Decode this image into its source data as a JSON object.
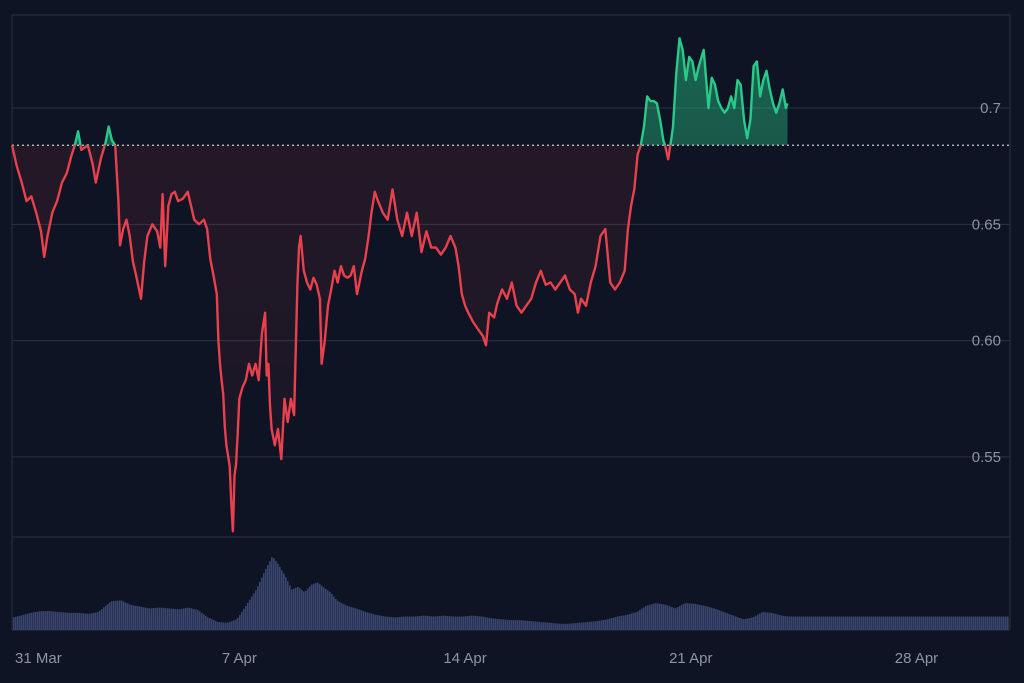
{
  "chart_data": {
    "type": "line",
    "title": "",
    "xlabel": "",
    "ylabel": "",
    "baseline": 0.684,
    "ylim": [
      0.516,
      0.74
    ],
    "y_ticks": [
      "0.55",
      "0.60",
      "0.65",
      "0.7"
    ],
    "x_ticks": [
      "31 Mar",
      "7 Apr",
      "14 Apr",
      "21 Apr",
      "28 Apr"
    ],
    "x_range_days": [
      30.95,
      61.9
    ],
    "colors": {
      "background": "#0e1423",
      "grid": "#2a3245",
      "above": "#29c98a",
      "below": "#e8414d",
      "volume": "#3a4670",
      "tick_text": "#8b93a7",
      "baseline": "#c9ccd4"
    },
    "series": [
      {
        "values": [
          [
            30.95,
            0.684
          ],
          [
            31.1,
            0.675
          ],
          [
            31.25,
            0.668
          ],
          [
            31.4,
            0.66
          ],
          [
            31.55,
            0.662
          ],
          [
            31.7,
            0.655
          ],
          [
            31.85,
            0.647
          ],
          [
            31.95,
            0.636
          ],
          [
            32.05,
            0.645
          ],
          [
            32.2,
            0.655
          ],
          [
            32.35,
            0.66
          ],
          [
            32.5,
            0.668
          ],
          [
            32.65,
            0.672
          ],
          [
            32.8,
            0.68
          ],
          [
            32.9,
            0.684
          ],
          [
            33.0,
            0.69
          ],
          [
            33.1,
            0.682
          ],
          [
            33.3,
            0.684
          ],
          [
            33.45,
            0.676
          ],
          [
            33.55,
            0.668
          ],
          [
            33.7,
            0.678
          ],
          [
            33.85,
            0.685
          ],
          [
            33.95,
            0.692
          ],
          [
            34.05,
            0.686
          ],
          [
            34.15,
            0.684
          ],
          [
            34.25,
            0.66
          ],
          [
            34.3,
            0.641
          ],
          [
            34.4,
            0.648
          ],
          [
            34.5,
            0.652
          ],
          [
            34.6,
            0.645
          ],
          [
            34.7,
            0.634
          ],
          [
            34.8,
            0.628
          ],
          [
            34.95,
            0.618
          ],
          [
            35.05,
            0.634
          ],
          [
            35.15,
            0.645
          ],
          [
            35.3,
            0.65
          ],
          [
            35.45,
            0.647
          ],
          [
            35.55,
            0.64
          ],
          [
            35.62,
            0.663
          ],
          [
            35.7,
            0.632
          ],
          [
            35.8,
            0.658
          ],
          [
            35.9,
            0.663
          ],
          [
            36.0,
            0.664
          ],
          [
            36.1,
            0.66
          ],
          [
            36.25,
            0.661
          ],
          [
            36.4,
            0.664
          ],
          [
            36.5,
            0.658
          ],
          [
            36.6,
            0.652
          ],
          [
            36.75,
            0.65
          ],
          [
            36.9,
            0.652
          ],
          [
            37.0,
            0.648
          ],
          [
            37.1,
            0.635
          ],
          [
            37.2,
            0.628
          ],
          [
            37.3,
            0.62
          ],
          [
            37.35,
            0.6
          ],
          [
            37.4,
            0.59
          ],
          [
            37.45,
            0.583
          ],
          [
            37.5,
            0.577
          ],
          [
            37.55,
            0.563
          ],
          [
            37.6,
            0.555
          ],
          [
            37.7,
            0.546
          ],
          [
            37.75,
            0.53
          ],
          [
            37.8,
            0.518
          ],
          [
            37.85,
            0.542
          ],
          [
            37.9,
            0.547
          ],
          [
            37.95,
            0.56
          ],
          [
            38.0,
            0.575
          ],
          [
            38.1,
            0.58
          ],
          [
            38.2,
            0.583
          ],
          [
            38.3,
            0.59
          ],
          [
            38.4,
            0.585
          ],
          [
            38.5,
            0.59
          ],
          [
            38.6,
            0.583
          ],
          [
            38.7,
            0.603
          ],
          [
            38.8,
            0.612
          ],
          [
            38.85,
            0.585
          ],
          [
            38.9,
            0.59
          ],
          [
            38.95,
            0.572
          ],
          [
            39.0,
            0.562
          ],
          [
            39.1,
            0.555
          ],
          [
            39.2,
            0.562
          ],
          [
            39.3,
            0.549
          ],
          [
            39.4,
            0.575
          ],
          [
            39.5,
            0.565
          ],
          [
            39.6,
            0.575
          ],
          [
            39.7,
            0.568
          ],
          [
            39.8,
            0.624
          ],
          [
            39.85,
            0.64
          ],
          [
            39.9,
            0.645
          ],
          [
            40.0,
            0.63
          ],
          [
            40.1,
            0.625
          ],
          [
            40.2,
            0.622
          ],
          [
            40.3,
            0.627
          ],
          [
            40.4,
            0.624
          ],
          [
            40.5,
            0.618
          ],
          [
            40.55,
            0.59
          ],
          [
            40.65,
            0.6
          ],
          [
            40.75,
            0.615
          ],
          [
            40.85,
            0.622
          ],
          [
            40.95,
            0.63
          ],
          [
            41.05,
            0.625
          ],
          [
            41.15,
            0.632
          ],
          [
            41.25,
            0.628
          ],
          [
            41.35,
            0.627
          ],
          [
            41.45,
            0.628
          ],
          [
            41.55,
            0.632
          ],
          [
            41.65,
            0.62
          ],
          [
            41.8,
            0.63
          ],
          [
            41.9,
            0.635
          ],
          [
            42.0,
            0.644
          ],
          [
            42.1,
            0.655
          ],
          [
            42.2,
            0.664
          ],
          [
            42.3,
            0.66
          ],
          [
            42.45,
            0.655
          ],
          [
            42.6,
            0.652
          ],
          [
            42.75,
            0.665
          ],
          [
            42.9,
            0.652
          ],
          [
            43.05,
            0.645
          ],
          [
            43.2,
            0.655
          ],
          [
            43.35,
            0.645
          ],
          [
            43.5,
            0.655
          ],
          [
            43.65,
            0.638
          ],
          [
            43.8,
            0.647
          ],
          [
            43.95,
            0.64
          ],
          [
            44.1,
            0.64
          ],
          [
            44.25,
            0.637
          ],
          [
            44.4,
            0.64
          ],
          [
            44.55,
            0.645
          ],
          [
            44.7,
            0.64
          ],
          [
            44.8,
            0.632
          ],
          [
            44.9,
            0.62
          ],
          [
            45.0,
            0.615
          ],
          [
            45.1,
            0.612
          ],
          [
            45.25,
            0.608
          ],
          [
            45.4,
            0.605
          ],
          [
            45.55,
            0.602
          ],
          [
            45.65,
            0.598
          ],
          [
            45.75,
            0.612
          ],
          [
            45.9,
            0.61
          ],
          [
            46.0,
            0.616
          ],
          [
            46.15,
            0.622
          ],
          [
            46.3,
            0.618
          ],
          [
            46.45,
            0.625
          ],
          [
            46.6,
            0.615
          ],
          [
            46.75,
            0.612
          ],
          [
            46.9,
            0.615
          ],
          [
            47.05,
            0.618
          ],
          [
            47.2,
            0.625
          ],
          [
            47.35,
            0.63
          ],
          [
            47.5,
            0.624
          ],
          [
            47.65,
            0.625
          ],
          [
            47.8,
            0.622
          ],
          [
            47.95,
            0.625
          ],
          [
            48.1,
            0.628
          ],
          [
            48.25,
            0.622
          ],
          [
            48.4,
            0.62
          ],
          [
            48.5,
            0.612
          ],
          [
            48.6,
            0.618
          ],
          [
            48.75,
            0.615
          ],
          [
            48.9,
            0.625
          ],
          [
            49.05,
            0.632
          ],
          [
            49.2,
            0.645
          ],
          [
            49.35,
            0.648
          ],
          [
            49.5,
            0.625
          ],
          [
            49.65,
            0.622
          ],
          [
            49.8,
            0.625
          ],
          [
            49.95,
            0.63
          ],
          [
            50.05,
            0.648
          ],
          [
            50.15,
            0.658
          ],
          [
            50.25,
            0.665
          ],
          [
            50.35,
            0.68
          ],
          [
            50.45,
            0.684
          ],
          [
            50.55,
            0.692
          ],
          [
            50.65,
            0.705
          ],
          [
            50.75,
            0.703
          ],
          [
            50.85,
            0.703
          ],
          [
            50.95,
            0.702
          ],
          [
            51.05,
            0.695
          ],
          [
            51.15,
            0.686
          ],
          [
            51.2,
            0.684
          ],
          [
            51.3,
            0.678
          ],
          [
            51.4,
            0.687
          ],
          [
            51.45,
            0.692
          ],
          [
            51.55,
            0.715
          ],
          [
            51.65,
            0.73
          ],
          [
            51.75,
            0.725
          ],
          [
            51.85,
            0.712
          ],
          [
            51.95,
            0.722
          ],
          [
            52.05,
            0.72
          ],
          [
            52.15,
            0.712
          ],
          [
            52.25,
            0.718
          ],
          [
            52.4,
            0.725
          ],
          [
            52.55,
            0.7
          ],
          [
            52.65,
            0.713
          ],
          [
            52.75,
            0.71
          ],
          [
            52.85,
            0.703
          ],
          [
            52.95,
            0.7
          ],
          [
            53.05,
            0.698
          ],
          [
            53.15,
            0.7
          ],
          [
            53.25,
            0.705
          ],
          [
            53.35,
            0.7
          ],
          [
            53.45,
            0.712
          ],
          [
            53.55,
            0.71
          ],
          [
            53.65,
            0.695
          ],
          [
            53.75,
            0.687
          ],
          [
            53.85,
            0.695
          ],
          [
            53.95,
            0.718
          ],
          [
            54.05,
            0.72
          ],
          [
            54.15,
            0.705
          ],
          [
            54.25,
            0.712
          ],
          [
            54.35,
            0.716
          ],
          [
            54.45,
            0.708
          ],
          [
            54.55,
            0.702
          ],
          [
            54.65,
            0.698
          ],
          [
            54.75,
            0.702
          ],
          [
            54.85,
            0.708
          ],
          [
            54.95,
            0.7
          ],
          [
            55.0,
            0.702
          ]
        ]
      }
    ],
    "volume": {
      "values": [
        [
          30.95,
          0.14
        ],
        [
          31.2,
          0.16
        ],
        [
          31.5,
          0.19
        ],
        [
          31.8,
          0.21
        ],
        [
          32.1,
          0.21
        ],
        [
          32.4,
          0.2
        ],
        [
          32.7,
          0.19
        ],
        [
          33.0,
          0.19
        ],
        [
          33.3,
          0.18
        ],
        [
          33.6,
          0.2
        ],
        [
          33.8,
          0.26
        ],
        [
          34.0,
          0.32
        ],
        [
          34.3,
          0.33
        ],
        [
          34.6,
          0.28
        ],
        [
          34.9,
          0.26
        ],
        [
          35.2,
          0.24
        ],
        [
          35.5,
          0.25
        ],
        [
          35.8,
          0.24
        ],
        [
          36.1,
          0.23
        ],
        [
          36.4,
          0.25
        ],
        [
          36.7,
          0.22
        ],
        [
          37.0,
          0.14
        ],
        [
          37.3,
          0.09
        ],
        [
          37.6,
          0.08
        ],
        [
          37.9,
          0.12
        ],
        [
          38.2,
          0.28
        ],
        [
          38.5,
          0.45
        ],
        [
          38.8,
          0.68
        ],
        [
          39.0,
          0.82
        ],
        [
          39.2,
          0.72
        ],
        [
          39.4,
          0.6
        ],
        [
          39.6,
          0.45
        ],
        [
          39.8,
          0.48
        ],
        [
          40.0,
          0.42
        ],
        [
          40.2,
          0.5
        ],
        [
          40.4,
          0.53
        ],
        [
          40.6,
          0.47
        ],
        [
          40.8,
          0.42
        ],
        [
          41.0,
          0.33
        ],
        [
          41.3,
          0.27
        ],
        [
          41.6,
          0.24
        ],
        [
          41.9,
          0.2
        ],
        [
          42.2,
          0.17
        ],
        [
          42.5,
          0.15
        ],
        [
          42.8,
          0.14
        ],
        [
          43.1,
          0.15
        ],
        [
          43.4,
          0.15
        ],
        [
          43.7,
          0.16
        ],
        [
          44.0,
          0.15
        ],
        [
          44.3,
          0.16
        ],
        [
          44.6,
          0.15
        ],
        [
          44.9,
          0.15
        ],
        [
          45.2,
          0.16
        ],
        [
          45.5,
          0.15
        ],
        [
          45.8,
          0.13
        ],
        [
          46.1,
          0.12
        ],
        [
          46.4,
          0.11
        ],
        [
          46.7,
          0.11
        ],
        [
          47.0,
          0.1
        ],
        [
          47.3,
          0.09
        ],
        [
          47.6,
          0.08
        ],
        [
          47.9,
          0.07
        ],
        [
          48.2,
          0.07
        ],
        [
          48.5,
          0.08
        ],
        [
          48.8,
          0.09
        ],
        [
          49.1,
          0.1
        ],
        [
          49.4,
          0.12
        ],
        [
          49.7,
          0.15
        ],
        [
          50.0,
          0.17
        ],
        [
          50.3,
          0.2
        ],
        [
          50.6,
          0.27
        ],
        [
          50.9,
          0.3
        ],
        [
          51.2,
          0.28
        ],
        [
          51.5,
          0.24
        ],
        [
          51.8,
          0.3
        ],
        [
          52.1,
          0.29
        ],
        [
          52.4,
          0.27
        ],
        [
          52.7,
          0.24
        ],
        [
          53.0,
          0.2
        ],
        [
          53.3,
          0.16
        ],
        [
          53.6,
          0.12
        ],
        [
          53.9,
          0.14
        ],
        [
          54.2,
          0.2
        ],
        [
          54.5,
          0.19
        ],
        [
          54.8,
          0.16
        ],
        [
          55.0,
          0.15
        ]
      ]
    }
  }
}
